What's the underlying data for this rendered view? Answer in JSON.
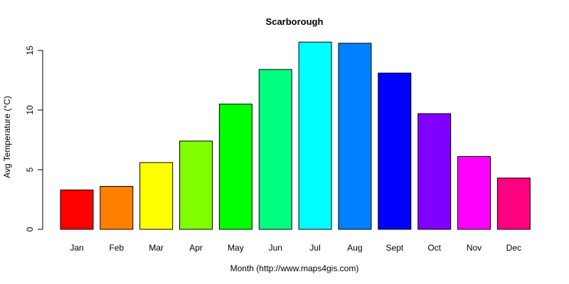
{
  "chart_data": {
    "type": "bar",
    "title": "Scarborough",
    "xlabel": "Month (http://www.maps4gis.com)",
    "ylabel": "Avg Temperature (°C)",
    "categories": [
      "Jan",
      "Feb",
      "Mar",
      "Apr",
      "May",
      "Jun",
      "Jul",
      "Aug",
      "Sept",
      "Oct",
      "Nov",
      "Dec"
    ],
    "values": [
      3.3,
      3.6,
      5.6,
      7.4,
      10.5,
      13.4,
      15.7,
      15.6,
      13.1,
      9.7,
      6.1,
      4.3
    ],
    "colors": [
      "#FF0000",
      "#FF8000",
      "#FFFF00",
      "#80FF00",
      "#00FF00",
      "#00FF80",
      "#00FFFF",
      "#0080FF",
      "#0000FF",
      "#8000FF",
      "#FF00FF",
      "#FF0080"
    ],
    "yticks": [
      0,
      5,
      10,
      15
    ],
    "ylim": [
      0,
      15.7
    ],
    "grid": false,
    "legend": null
  }
}
